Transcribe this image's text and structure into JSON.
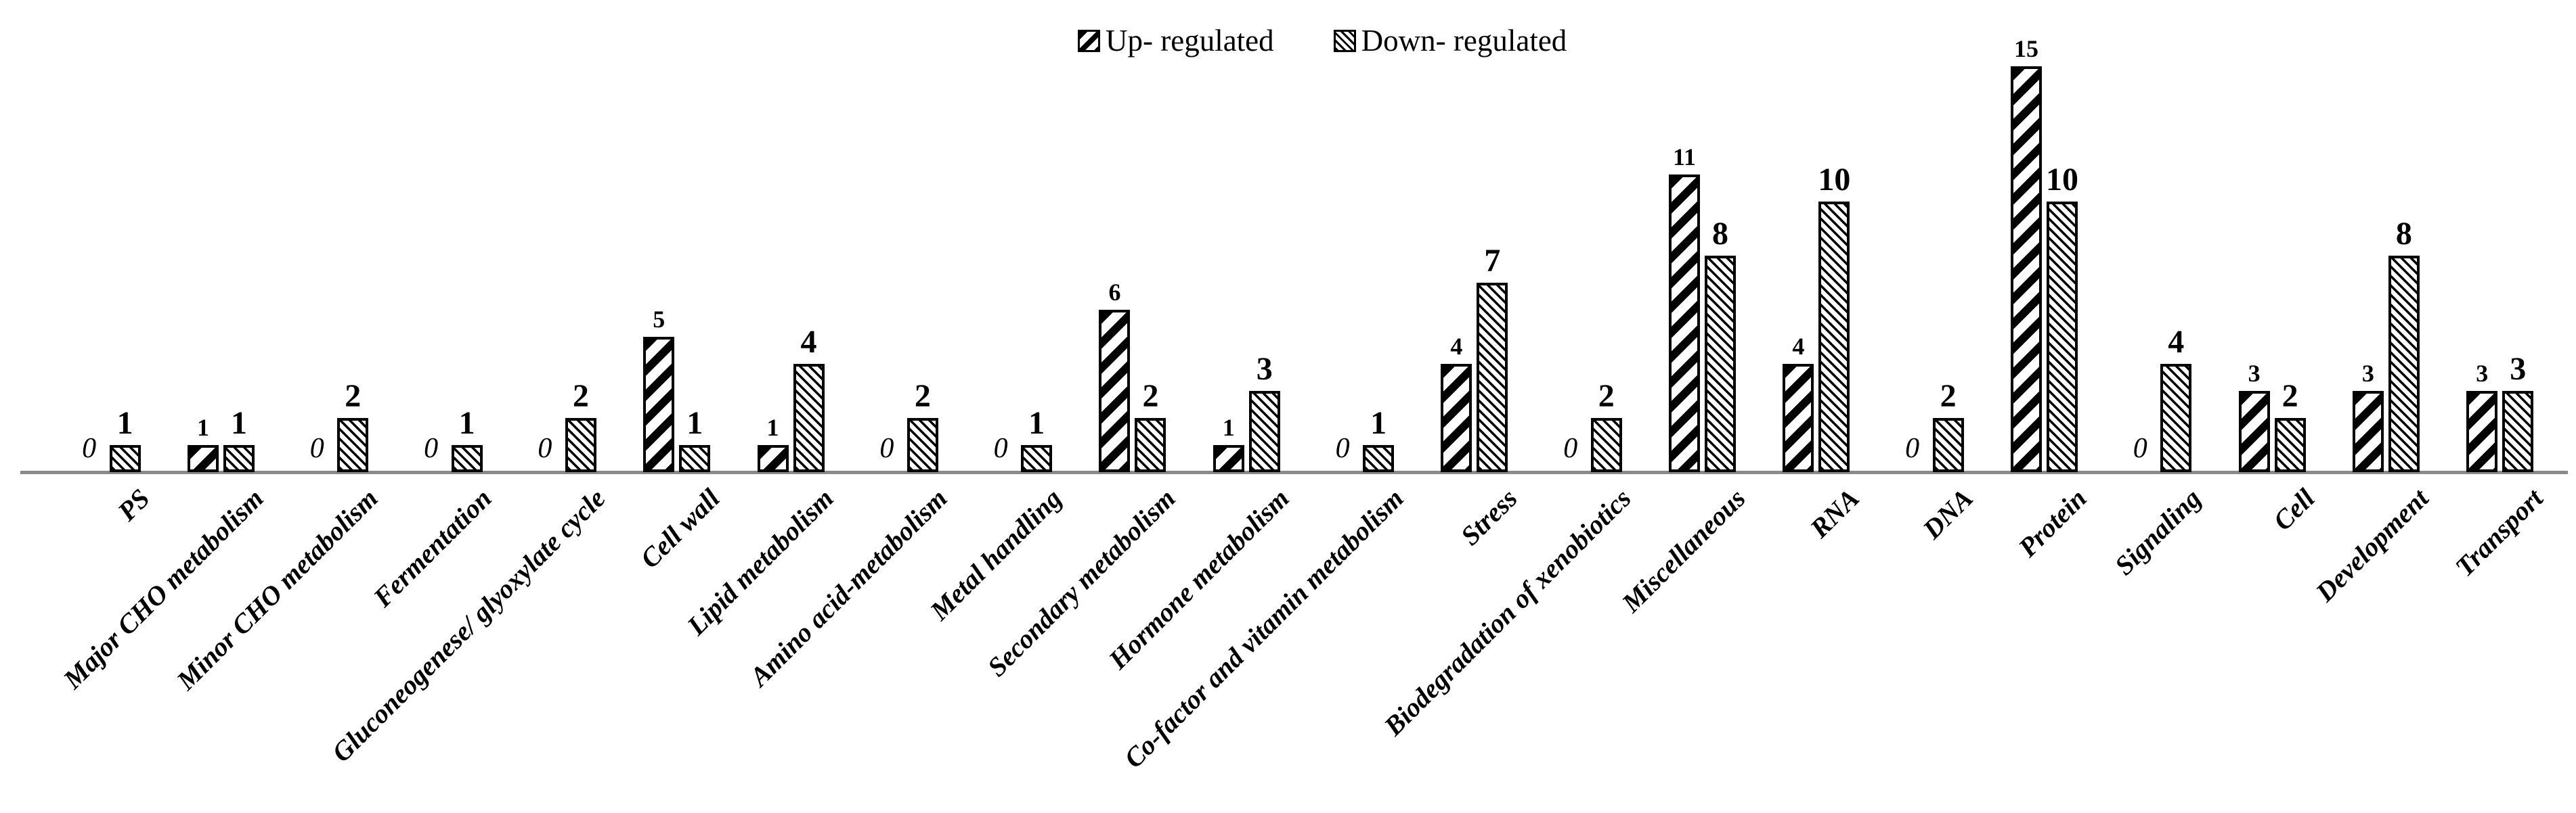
{
  "figure": {
    "legend": {
      "items": [
        {
          "label": "Up- regulated",
          "series": "up"
        },
        {
          "label": "Down- regulated",
          "series": "down"
        }
      ]
    }
  },
  "chart_data": {
    "type": "bar",
    "title": "",
    "xlabel": "",
    "ylabel": "",
    "categories": [
      "PS",
      "Major CHO metabolism",
      "Minor CHO metabolism",
      "Fermentation",
      "Gluconeogenese/ glyoxylate cycle",
      "Cell wall",
      "Lipid metabolism",
      "Amino acid-metabolism",
      "Metal handling",
      "Secondary metabolism",
      "Hormone metabolism",
      "Co-factor and vitamin metabolism",
      "Stress",
      "Biodegradation of xenobiotics",
      "Miscellaneous",
      "RNA",
      "DNA",
      "Protein",
      "Signaling",
      "Cell",
      "Development",
      "Transport"
    ],
    "series": [
      {
        "name": "Up- regulated",
        "pattern": "thick-forward-diagonal-hatch",
        "values": [
          0,
          1,
          0,
          0,
          0,
          5,
          1,
          0,
          0,
          6,
          1,
          0,
          4,
          0,
          11,
          4,
          0,
          15,
          0,
          3,
          3,
          3
        ]
      },
      {
        "name": "Down- regulated",
        "pattern": "fine-backward-diagonal-hatch",
        "values": [
          1,
          1,
          2,
          1,
          2,
          1,
          4,
          2,
          1,
          2,
          3,
          1,
          7,
          2,
          8,
          10,
          2,
          10,
          4,
          2,
          8,
          3
        ]
      }
    ],
    "value_labels_shown": true,
    "ylim": [
      0,
      15.5
    ],
    "grid": false,
    "y_axis_shown": false,
    "legend_position": "top-center",
    "colors": {
      "bar_fill": "#ffffff",
      "bar_edge": "#000000",
      "axis_line": "#8a8a8a",
      "text": "#000000"
    }
  }
}
